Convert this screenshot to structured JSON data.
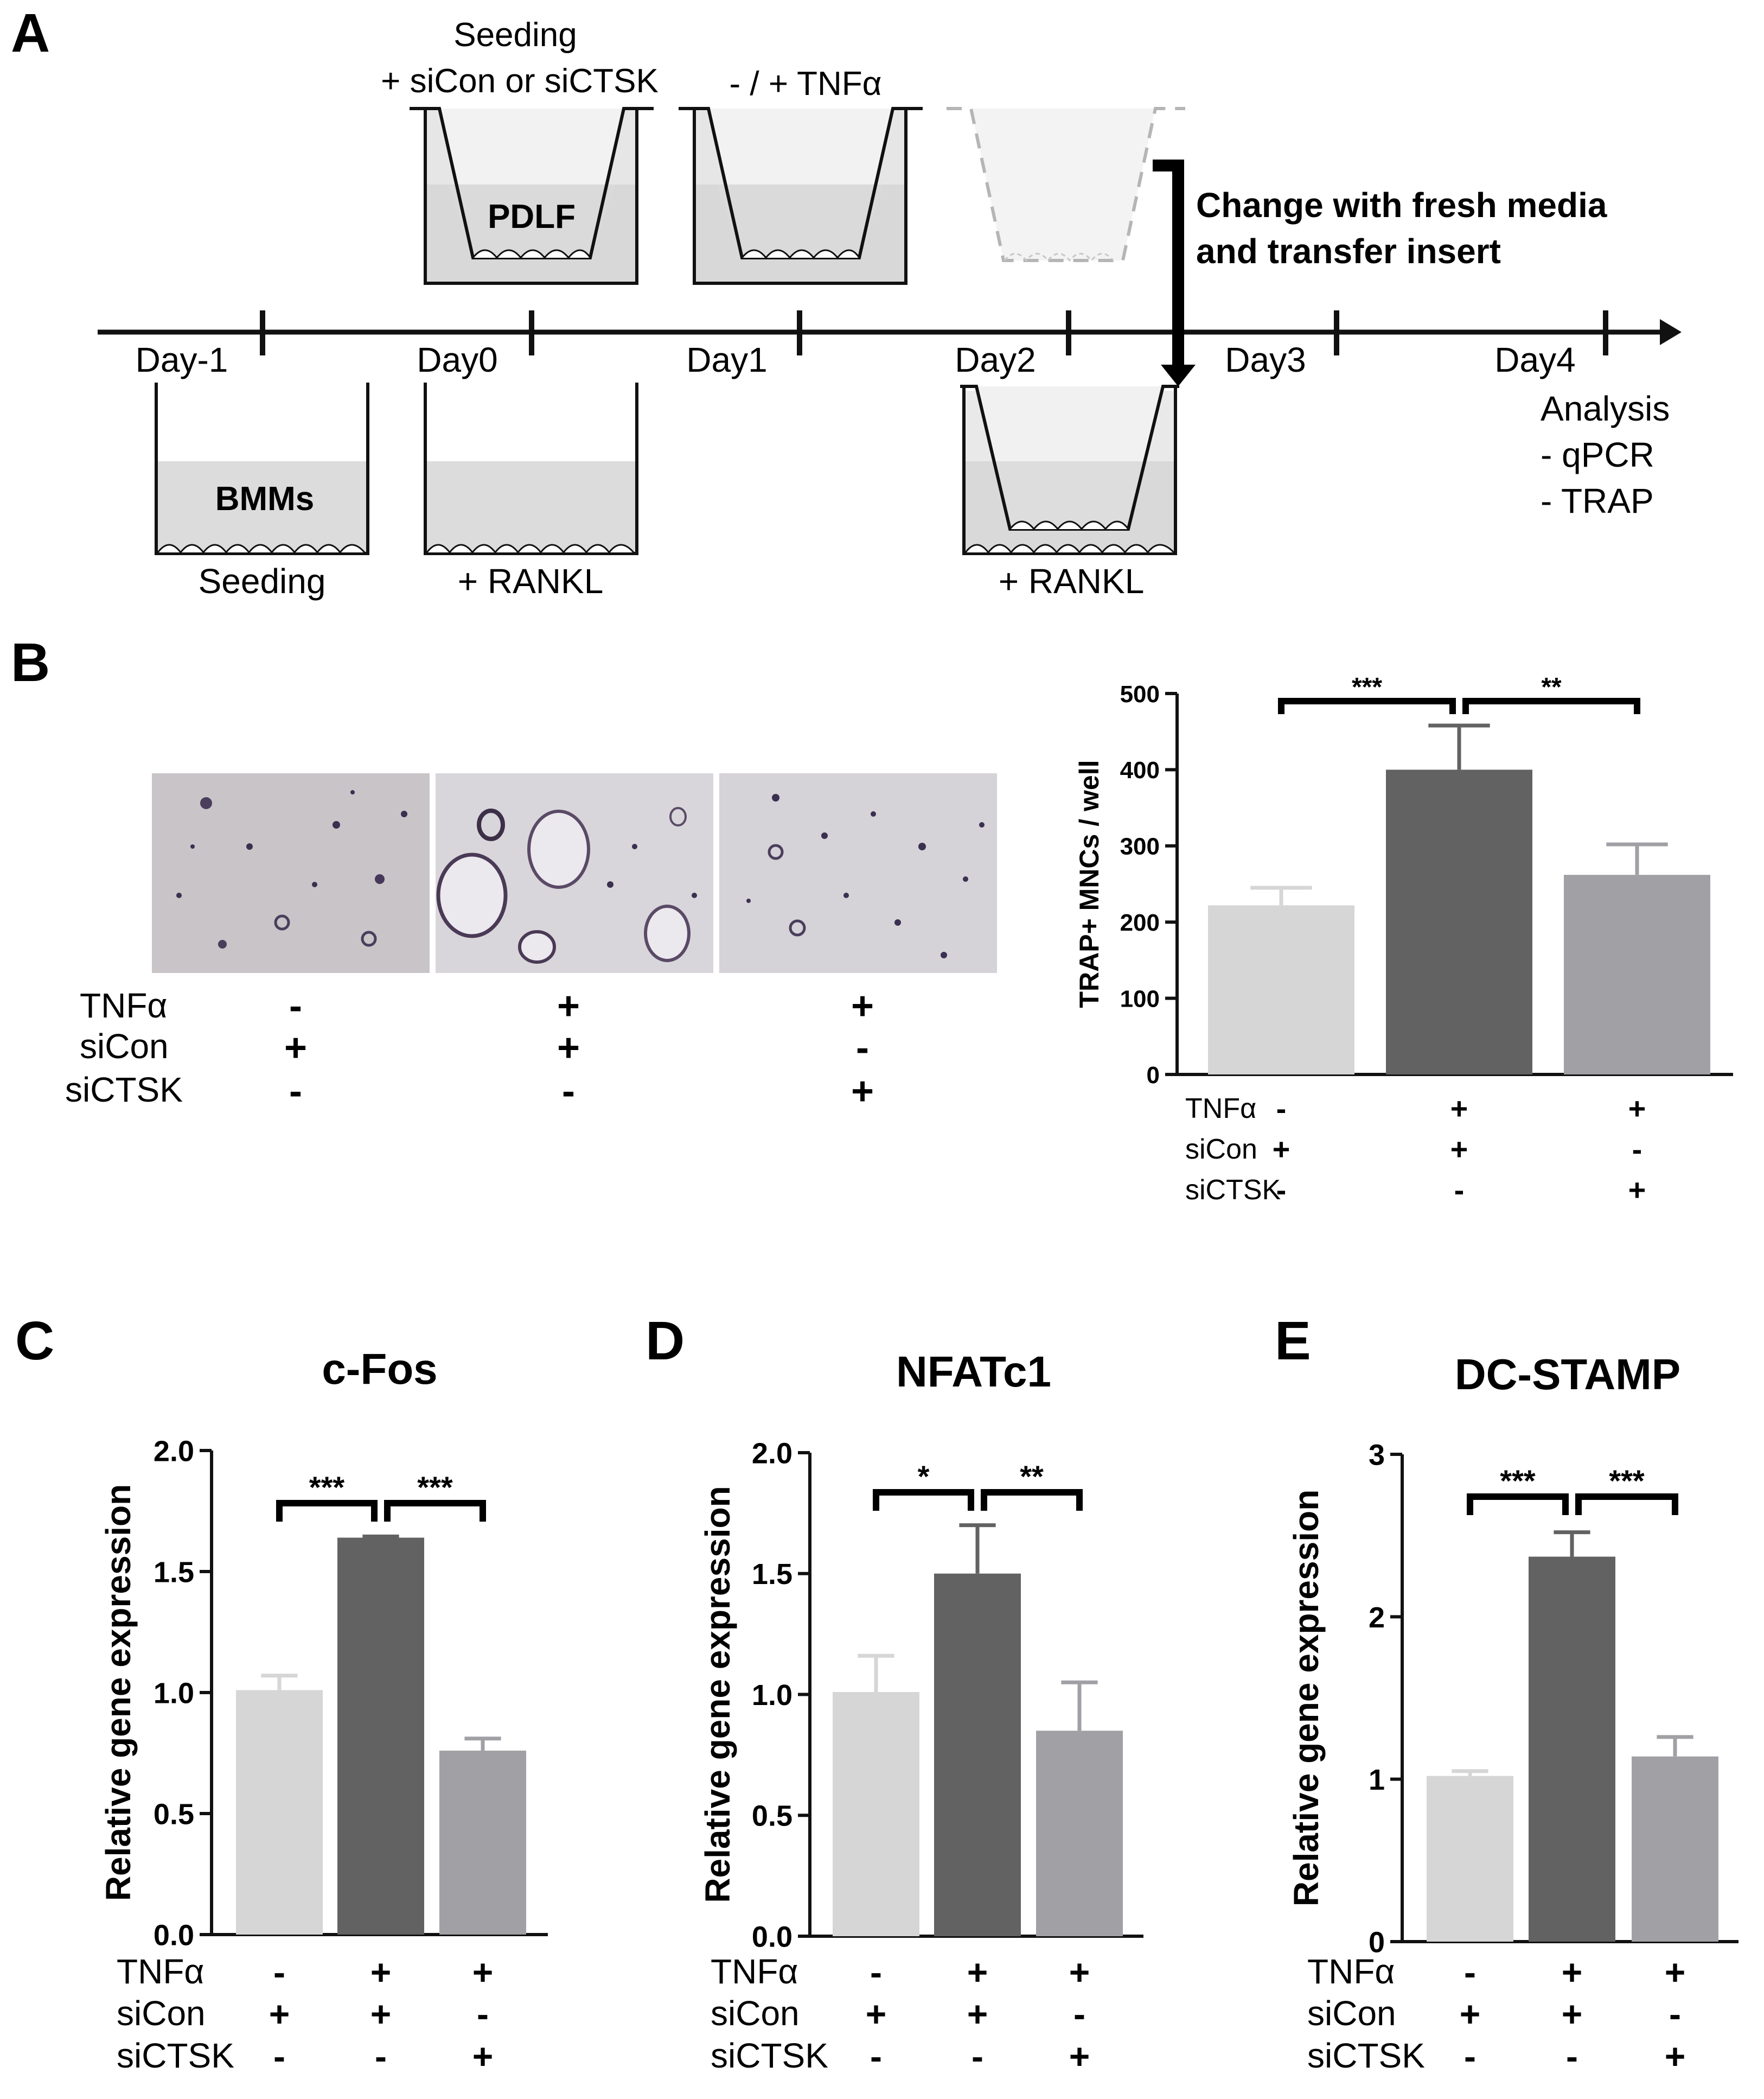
{
  "panel_letters": {
    "a": "A",
    "b": "B",
    "c": "C",
    "d": "D",
    "e": "E"
  },
  "timeline": {
    "days": [
      "Day-1",
      "Day0",
      "Day1",
      "Day2",
      "Day3",
      "Day4"
    ],
    "top_seeding_line1": "Seeding",
    "top_seeding_line2": "+ siCon or siCTSK",
    "top_tnf": "- / + TNFα",
    "pdlf_label": "PDLF",
    "change_line1": "Change with fresh media",
    "change_line2": "and transfer insert",
    "bmms_label": "BMMs",
    "bottom_seeding": "Seeding",
    "bottom_rankl_day0": "+ RANKL",
    "bottom_rankl_day2": "+ RANKL",
    "analysis_title": "Analysis",
    "analysis_items": [
      "- qPCR",
      "- TRAP"
    ]
  },
  "condition_labels": [
    "TNFα",
    "siCon",
    "siCTSK"
  ],
  "condition_signs": [
    [
      "-",
      "+",
      "+"
    ],
    [
      "+",
      "+",
      "-"
    ],
    [
      "-",
      "-",
      "+"
    ]
  ],
  "colors": {
    "control": "#d6d6d6",
    "tnf": "#626262",
    "siCTSK": "#a1a0a5"
  },
  "chart_data": [
    {
      "panel": "B",
      "type": "bar",
      "categories": [
        "1",
        "2",
        "3"
      ],
      "values": [
        222,
        400,
        262
      ],
      "errors": [
        23,
        58,
        40
      ],
      "ylabel": "TRAP+ MNCs / well",
      "ylim": [
        0,
        500
      ],
      "yticks": [
        "0",
        "100",
        "200",
        "300",
        "400",
        "500"
      ],
      "significance": [
        "***",
        "**"
      ]
    },
    {
      "panel": "C",
      "type": "bar",
      "title": "c-Fos",
      "categories": [
        "1",
        "2",
        "3"
      ],
      "values": [
        1.01,
        1.64,
        0.76
      ],
      "errors": [
        0.06,
        0.005,
        0.05
      ],
      "ylabel": "Relative gene expression",
      "ylim": [
        0,
        2.0
      ],
      "yticks": [
        "0.0",
        "0.5",
        "1.0",
        "1.5",
        "2.0"
      ],
      "significance": [
        "***",
        "***"
      ]
    },
    {
      "panel": "D",
      "type": "bar",
      "title": "NFATc1",
      "categories": [
        "1",
        "2",
        "3"
      ],
      "values": [
        1.01,
        1.5,
        0.85
      ],
      "errors": [
        0.15,
        0.2,
        0.2
      ],
      "ylabel": "Relative gene expression",
      "ylim": [
        0,
        2.0
      ],
      "yticks": [
        "0.0",
        "0.5",
        "1.0",
        "1.5",
        "2.0"
      ],
      "significance": [
        "*",
        "**"
      ]
    },
    {
      "panel": "E",
      "type": "bar",
      "title": "DC-STAMP",
      "categories": [
        "1",
        "2",
        "3"
      ],
      "values": [
        1.02,
        2.37,
        1.14
      ],
      "errors": [
        0.03,
        0.15,
        0.12
      ],
      "ylabel": "Relative gene expression",
      "ylim": [
        0,
        3
      ],
      "yticks": [
        "0",
        "1",
        "2",
        "3"
      ],
      "significance": [
        "***",
        "***"
      ]
    }
  ]
}
